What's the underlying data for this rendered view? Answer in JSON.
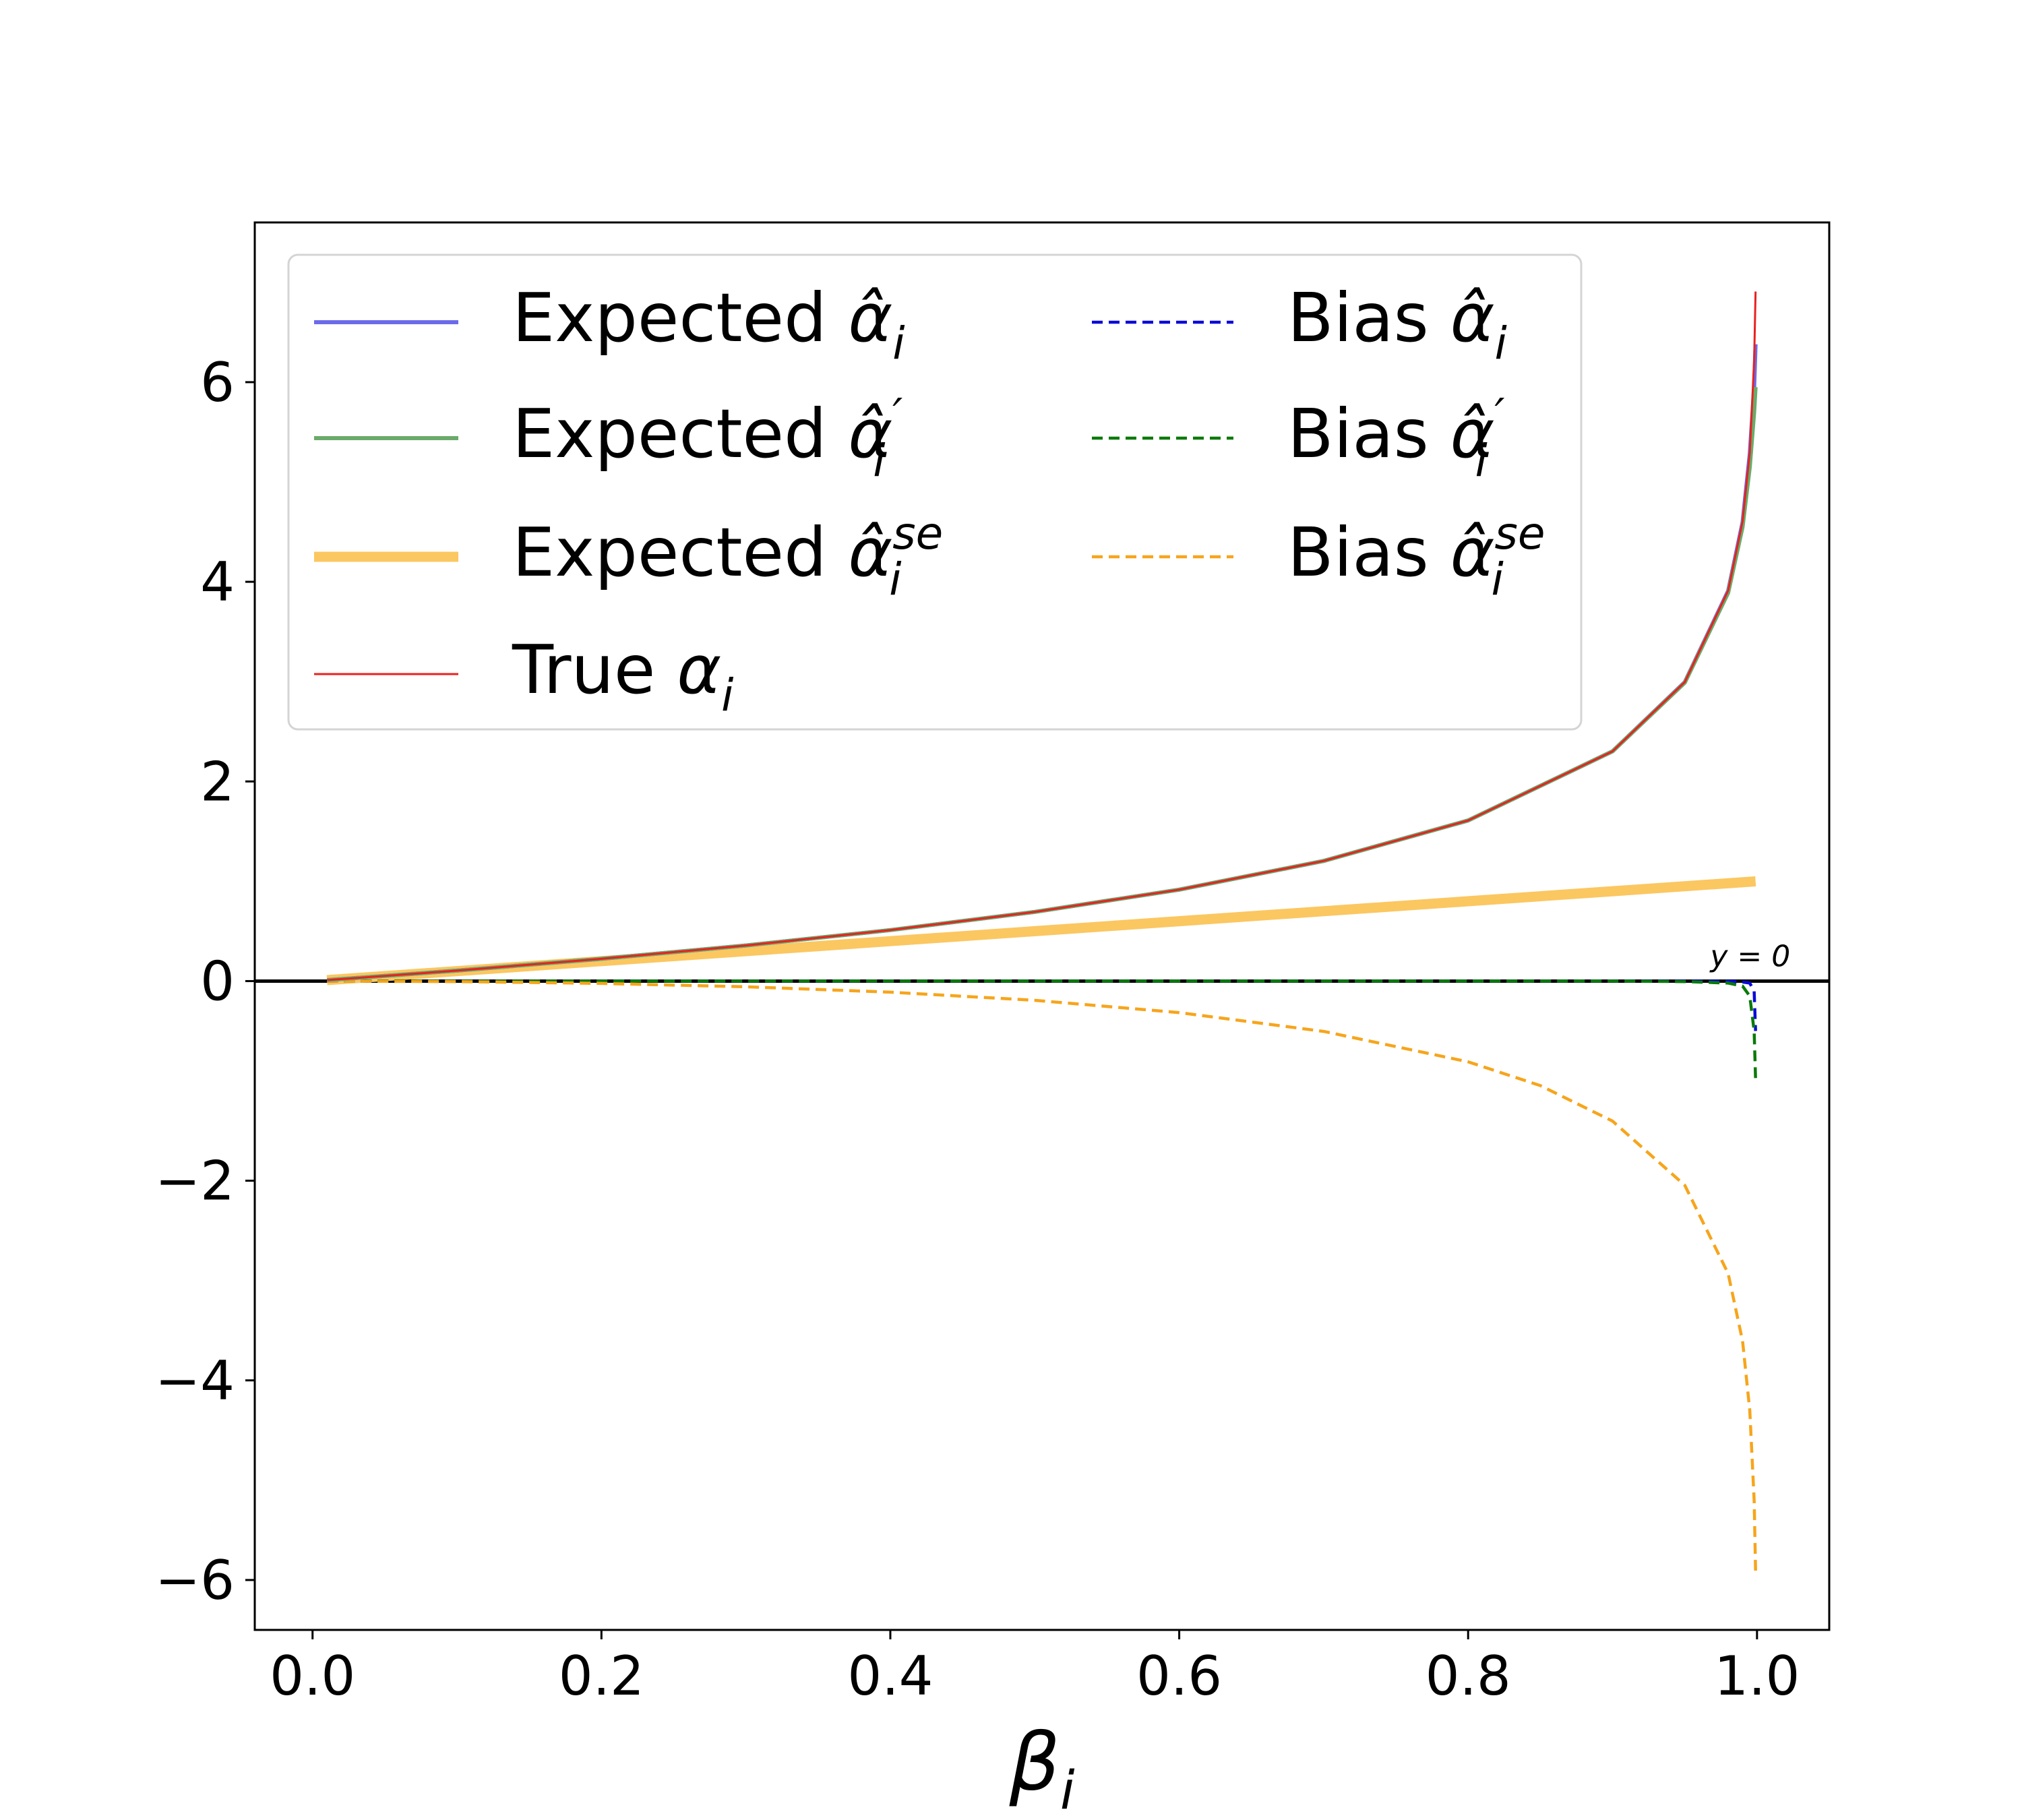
{
  "chart_data": {
    "type": "line",
    "xlabel": "β",
    "xlabel_sub": "i",
    "ylabel": "",
    "xlim": [
      -0.04,
      1.05
    ],
    "ylim": [
      -6.5,
      7.6
    ],
    "xticks": [
      0.0,
      0.2,
      0.4,
      0.6,
      0.8,
      1.0
    ],
    "xtick_labels": [
      "0.0",
      "0.2",
      "0.4",
      "0.6",
      "0.8",
      "1.0"
    ],
    "yticks": [
      -6,
      -4,
      -2,
      0,
      2,
      4,
      6
    ],
    "ytick_labels": [
      "−6",
      "−4",
      "−2",
      "0",
      "2",
      "4",
      "6"
    ],
    "grid": false,
    "legend_position": "top-left",
    "annotation": "y = 0",
    "series": [
      {
        "name": "Expected α̂ᵢ",
        "legend_label": "Expected",
        "symbol": "α̂",
        "sub": "i",
        "sup": "",
        "color": "#6b6bea",
        "style": "solid",
        "x": [
          0.01,
          0.1,
          0.2,
          0.3,
          0.4,
          0.5,
          0.6,
          0.7,
          0.8,
          0.9,
          0.95,
          0.98,
          0.99,
          0.995,
          0.998,
          0.999
        ],
        "values": [
          0.01,
          0.105,
          0.223,
          0.357,
          0.511,
          0.693,
          0.916,
          1.204,
          1.609,
          2.302,
          2.995,
          3.908,
          4.595,
          5.28,
          5.95,
          6.38
        ]
      },
      {
        "name": "Expected α̂′ᵢ",
        "legend_label": "Expected",
        "symbol": "α̂",
        "sub": "i",
        "sup": "′",
        "color": "#6aaa6a",
        "style": "solid",
        "x": [
          0.01,
          0.1,
          0.2,
          0.3,
          0.4,
          0.5,
          0.6,
          0.7,
          0.8,
          0.9,
          0.95,
          0.98,
          0.99,
          0.995,
          0.998,
          0.999
        ],
        "values": [
          0.01,
          0.105,
          0.223,
          0.357,
          0.511,
          0.693,
          0.916,
          1.204,
          1.609,
          2.302,
          2.99,
          3.89,
          4.55,
          5.15,
          5.7,
          5.95
        ]
      },
      {
        "name": "Expected α̂ᵢˢᵉ",
        "legend_label": "Expected",
        "symbol": "α̂",
        "sub": "i",
        "sup": "se",
        "color": "#fbc761",
        "style": "thick",
        "x": [
          0.01,
          0.999
        ],
        "values": [
          0.01,
          0.999
        ]
      },
      {
        "name": "True αᵢ",
        "legend_label": "True",
        "symbol": "α",
        "sub": "i",
        "sup": "",
        "color": "#e8211f",
        "style": "thin",
        "x": [
          0.01,
          0.1,
          0.2,
          0.3,
          0.4,
          0.5,
          0.6,
          0.7,
          0.8,
          0.9,
          0.95,
          0.98,
          0.99,
          0.995,
          0.998,
          0.999
        ],
        "values": [
          0.01,
          0.105,
          0.223,
          0.357,
          0.511,
          0.693,
          0.916,
          1.204,
          1.609,
          2.302,
          2.996,
          3.912,
          4.605,
          5.298,
          6.215,
          6.908
        ]
      },
      {
        "name": "Bias α̂ᵢ",
        "legend_label": "Bias",
        "symbol": "α̂",
        "sub": "i",
        "sup": "",
        "color": "#0a0ad8",
        "style": "dashed",
        "x": [
          0.01,
          0.5,
          0.9,
          0.95,
          0.98,
          0.99,
          0.995,
          0.998,
          0.999
        ],
        "values": [
          0.0,
          0.0,
          0.0,
          0.0,
          -0.004,
          -0.01,
          -0.02,
          -0.1,
          -0.5
        ]
      },
      {
        "name": "Bias α̂′ᵢ",
        "legend_label": "Bias",
        "symbol": "α̂",
        "sub": "i",
        "sup": "′",
        "color": "#0a7a0a",
        "style": "dashed",
        "x": [
          0.01,
          0.5,
          0.9,
          0.95,
          0.98,
          0.99,
          0.995,
          0.998,
          0.999
        ],
        "values": [
          0.0,
          0.0,
          0.0,
          -0.005,
          -0.02,
          -0.05,
          -0.15,
          -0.5,
          -0.98
        ]
      },
      {
        "name": "Bias α̂ᵢˢᵉ",
        "legend_label": "Bias",
        "symbol": "α̂",
        "sub": "i",
        "sup": "se",
        "color": "#f6a51c",
        "style": "dashed",
        "x": [
          0.01,
          0.1,
          0.2,
          0.3,
          0.4,
          0.5,
          0.6,
          0.7,
          0.8,
          0.85,
          0.9,
          0.95,
          0.98,
          0.99,
          0.995,
          0.998,
          0.999
        ],
        "values": [
          0.0,
          -0.005,
          -0.023,
          -0.057,
          -0.111,
          -0.193,
          -0.316,
          -0.504,
          -0.809,
          -1.047,
          -1.403,
          -2.046,
          -2.93,
          -3.605,
          -4.3,
          -5.2,
          -5.91
        ]
      }
    ]
  }
}
